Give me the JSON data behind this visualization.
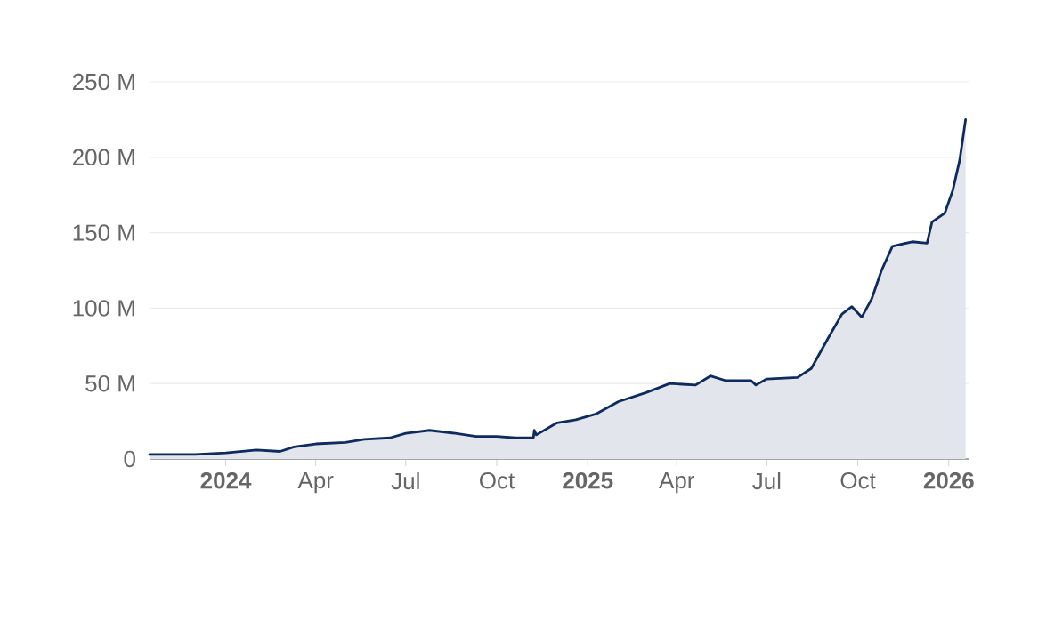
{
  "chart_data": {
    "type": "area",
    "color": "#0d2b5e",
    "x": [
      "2023-10-16",
      "2023-12-01",
      "2024-01-01",
      "2024-02-01",
      "2024-02-25",
      "2024-03-10",
      "2024-04-01",
      "2024-05-01",
      "2024-05-20",
      "2024-06-15",
      "2024-07-01",
      "2024-07-25",
      "2024-08-20",
      "2024-09-10",
      "2024-10-01",
      "2024-10-20",
      "2024-11-07",
      "2024-11-08",
      "2024-11-10",
      "2024-12-01",
      "2024-12-20",
      "2025-01-10",
      "2025-02-01",
      "2025-03-01",
      "2025-03-25",
      "2025-04-20",
      "2025-05-05",
      "2025-05-20",
      "2025-06-15",
      "2025-06-20",
      "2025-07-01",
      "2025-08-01",
      "2025-08-15",
      "2025-09-01",
      "2025-09-15",
      "2025-09-25",
      "2025-10-05",
      "2025-10-15",
      "2025-10-25",
      "2025-11-05",
      "2025-11-25",
      "2025-12-10",
      "2025-12-15",
      "2025-12-28",
      "2026-01-05",
      "2026-01-12",
      "2026-01-18"
    ],
    "values": [
      3,
      3,
      4,
      6,
      5,
      8,
      10,
      11,
      13,
      14,
      17,
      19,
      17,
      15,
      15,
      14,
      14,
      19,
      16,
      24,
      26,
      30,
      38,
      44,
      50,
      49,
      55,
      52,
      52,
      49,
      53,
      54,
      60,
      80,
      96,
      101,
      94,
      106,
      125,
      141,
      144,
      143,
      157,
      163,
      178,
      198,
      225
    ],
    "xlim": [
      "2023-10-16",
      "2026-01-21"
    ],
    "xticks": [
      {
        "value": "2024-01-01",
        "label": "2024"
      },
      {
        "value": "2024-04-01",
        "label": "Apr"
      },
      {
        "value": "2024-07-01",
        "label": "Jul"
      },
      {
        "value": "2024-10-01",
        "label": "Oct"
      },
      {
        "value": "2025-01-01",
        "label": "2025"
      },
      {
        "value": "2025-04-01",
        "label": "Apr"
      },
      {
        "value": "2025-07-01",
        "label": "Jul"
      },
      {
        "value": "2025-10-01",
        "label": "Oct"
      },
      {
        "value": "2026-01-01",
        "label": "2026"
      }
    ],
    "ylim": [
      0,
      250
    ],
    "yticks": [
      {
        "value": 0,
        "label": "0"
      },
      {
        "value": 50,
        "label": "50 M"
      },
      {
        "value": 100,
        "label": "100 M"
      },
      {
        "value": 150,
        "label": "150 M"
      },
      {
        "value": 200,
        "label": "200 M"
      },
      {
        "value": 250,
        "label": "250 M"
      }
    ],
    "grid": "y"
  }
}
